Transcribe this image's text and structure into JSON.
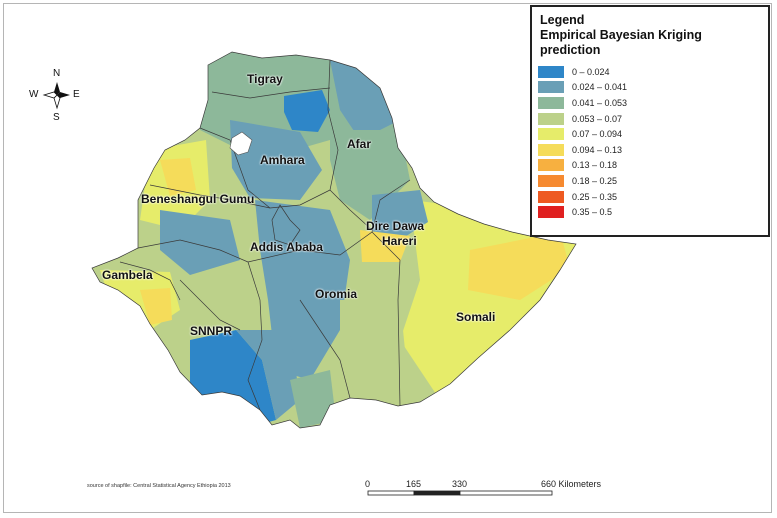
{
  "legend": {
    "title": "Legend",
    "subtitle": "Empirical Bayesian Kriging prediction",
    "classes": [
      {
        "label": "0 – 0.024",
        "color": "#2e86c8"
      },
      {
        "label": "0.024 – 0.041",
        "color": "#6a9fb6"
      },
      {
        "label": "0.041 – 0.053",
        "color": "#8db89a"
      },
      {
        "label": "0.053 – 0.07",
        "color": "#bcd18a"
      },
      {
        "label": "0.07 – 0.094",
        "color": "#e6ec6a"
      },
      {
        "label": "0.094 – 0.13",
        "color": "#f5dc5a"
      },
      {
        "label": "0.13 – 0.18",
        "color": "#f7b040"
      },
      {
        "label": "0.18 – 0.25",
        "color": "#f68a30"
      },
      {
        "label": "0.25 – 0.35",
        "color": "#ee5a22"
      },
      {
        "label": "0.35 – 0.5",
        "color": "#e02020"
      }
    ]
  },
  "regions": {
    "tigray": "Tigray",
    "afar": "Afar",
    "amhara": "Amhara",
    "beneshangul": "Beneshangul Gumu",
    "dire_dawa": "Dire Dawa",
    "hareri": "Hareri",
    "addis_ababa": "Addis Ababa",
    "gambela": "Gambela",
    "oromia": "Oromia",
    "snnpr": "SNNPR",
    "somali": "Somali"
  },
  "compass": {
    "n": "N",
    "s": "S",
    "e": "E",
    "w": "W",
    "icon": "north-arrow-icon"
  },
  "scale_bar": {
    "ticks": [
      "0",
      "165",
      "330",
      "660 Kilometers"
    ]
  },
  "source_note": "source of shapfile: Central Statistical Agency Ethiopia 2013"
}
